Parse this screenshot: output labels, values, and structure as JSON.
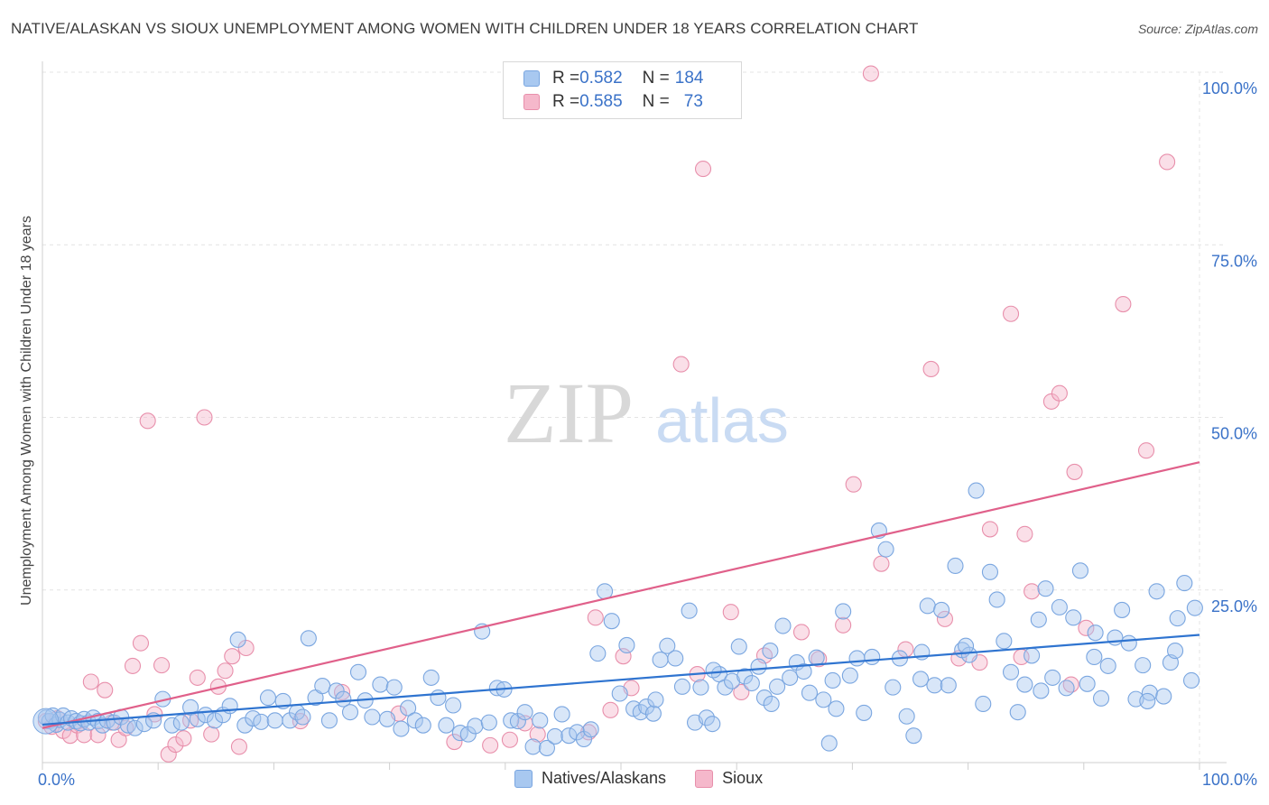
{
  "title": "NATIVE/ALASKAN VS SIOUX UNEMPLOYMENT AMONG WOMEN WITH CHILDREN UNDER 18 YEARS CORRELATION CHART",
  "source": "Source: ZipAtlas.com",
  "watermark": {
    "zip": "ZIP",
    "atlas": "atlas"
  },
  "legend_top": {
    "rows": [
      {
        "r_label": "R = ",
        "r_value": "0.582",
        "n_label": "N = ",
        "n_value": "184",
        "color": "#a8c8f0"
      },
      {
        "r_label": "R = ",
        "r_value": "0.585",
        "n_label": "N = ",
        "n_value": "73",
        "color": "#f5b8cb"
      }
    ]
  },
  "legend_bottom": [
    {
      "label": "Natives/Alaskans",
      "color": "#a8c8f0"
    },
    {
      "label": "Sioux",
      "color": "#f5b8cb"
    }
  ],
  "colors": {
    "blue_fill": "#a8c8f0",
    "blue_stroke": "#7aa6e0",
    "blue_line": "#2f74d0",
    "pink_fill": "#f5b8cb",
    "pink_stroke": "#e88fab",
    "pink_line": "#e0608a",
    "grid": "#e4e4e4",
    "tick_text": "#3a72c8"
  },
  "chart_data": {
    "type": "scatter",
    "title": "NATIVE/ALASKAN VS SIOUX UNEMPLOYMENT AMONG WOMEN WITH CHILDREN UNDER 18 YEARS CORRELATION CHART",
    "xlabel": "",
    "ylabel": "Unemployment Among Women with Children Under 18 years",
    "xlim": [
      0,
      100
    ],
    "ylim": [
      0,
      100
    ],
    "x_ticks": [
      "0.0%",
      "100.0%"
    ],
    "y_ticks": [
      {
        "value": 25,
        "label": "25.0%"
      },
      {
        "value": 50,
        "label": "50.0%"
      },
      {
        "value": 75,
        "label": "75.0%"
      },
      {
        "value": 100,
        "label": "100.0%"
      }
    ],
    "grid": true,
    "series": [
      {
        "name": "Natives/Alaskans",
        "R": 0.582,
        "N": 184,
        "trend": {
          "x": [
            0,
            100
          ],
          "y": [
            5.5,
            18.5
          ]
        },
        "points": [
          [
            0.3,
            6.5
          ],
          [
            0.6,
            6
          ],
          [
            0.9,
            6.8
          ],
          [
            1.2,
            5.5
          ],
          [
            1.5,
            6.2
          ],
          [
            1.8,
            6.8
          ],
          [
            2.2,
            5.8
          ],
          [
            2.5,
            6.4
          ],
          [
            2.9,
            6.0
          ],
          [
            3.3,
            5.7
          ],
          [
            3.6,
            6.3
          ],
          [
            4.0,
            5.8
          ],
          [
            4.4,
            6.5
          ],
          [
            4.8,
            6.0
          ],
          [
            5.2,
            5.4
          ],
          [
            5.6,
            6.1
          ],
          [
            6.2,
            5.8
          ],
          [
            6.8,
            6.6
          ],
          [
            7.4,
            5.4
          ],
          [
            8.0,
            5.0
          ],
          [
            8.8,
            5.6
          ],
          [
            9.6,
            6.1
          ],
          [
            10.4,
            9.2
          ],
          [
            11.2,
            5.4
          ],
          [
            12.0,
            5.8
          ],
          [
            12.8,
            8.0
          ],
          [
            13.4,
            6.3
          ],
          [
            14.1,
            6.9
          ],
          [
            14.9,
            6.1
          ],
          [
            15.6,
            6.9
          ],
          [
            16.2,
            8.2
          ],
          [
            16.9,
            17.8
          ],
          [
            17.5,
            5.4
          ],
          [
            18.2,
            6.4
          ],
          [
            18.9,
            5.9
          ],
          [
            19.5,
            9.4
          ],
          [
            20.1,
            6.1
          ],
          [
            20.8,
            8.9
          ],
          [
            21.4,
            6.1
          ],
          [
            22.0,
            7.3
          ],
          [
            22.5,
            6.6
          ],
          [
            23.0,
            18.0
          ],
          [
            23.6,
            9.4
          ],
          [
            24.2,
            11.1
          ],
          [
            24.8,
            6.1
          ],
          [
            25.4,
            10.4
          ],
          [
            26.0,
            9.2
          ],
          [
            26.6,
            7.3
          ],
          [
            27.3,
            13.1
          ],
          [
            27.9,
            9.0
          ],
          [
            28.5,
            6.6
          ],
          [
            29.2,
            11.3
          ],
          [
            29.8,
            6.3
          ],
          [
            30.4,
            10.9
          ],
          [
            31.0,
            4.9
          ],
          [
            31.6,
            7.9
          ],
          [
            32.2,
            6.1
          ],
          [
            32.9,
            5.4
          ],
          [
            33.6,
            12.3
          ],
          [
            34.2,
            9.4
          ],
          [
            34.9,
            5.4
          ],
          [
            35.5,
            8.3
          ],
          [
            36.1,
            4.3
          ],
          [
            36.8,
            4.1
          ],
          [
            37.4,
            5.3
          ],
          [
            38.0,
            19.0
          ],
          [
            38.6,
            5.8
          ],
          [
            39.3,
            10.8
          ],
          [
            39.9,
            10.6
          ],
          [
            40.5,
            6.1
          ],
          [
            41.1,
            6.0
          ],
          [
            41.7,
            7.3
          ],
          [
            42.4,
            2.3
          ],
          [
            43.0,
            6.1
          ],
          [
            43.6,
            2.1
          ],
          [
            44.3,
            3.8
          ],
          [
            44.9,
            7.0
          ],
          [
            45.5,
            3.9
          ],
          [
            46.2,
            4.4
          ],
          [
            46.8,
            3.4
          ],
          [
            47.4,
            4.8
          ],
          [
            48.0,
            15.8
          ],
          [
            48.6,
            24.8
          ],
          [
            49.2,
            20.5
          ],
          [
            49.9,
            10.0
          ],
          [
            50.5,
            17.0
          ],
          [
            51.1,
            7.8
          ],
          [
            51.7,
            7.3
          ],
          [
            52.2,
            8.1
          ],
          [
            52.8,
            7.1
          ],
          [
            53.4,
            14.9
          ],
          [
            54.0,
            16.9
          ],
          [
            54.7,
            15.1
          ],
          [
            55.3,
            11.0
          ],
          [
            55.9,
            22.0
          ],
          [
            56.4,
            5.8
          ],
          [
            56.9,
            10.9
          ],
          [
            57.4,
            6.5
          ],
          [
            57.9,
            5.6
          ],
          [
            58.5,
            12.8
          ],
          [
            59.0,
            10.9
          ],
          [
            59.6,
            11.8
          ],
          [
            60.2,
            16.8
          ],
          [
            60.7,
            12.5
          ],
          [
            61.3,
            11.5
          ],
          [
            61.9,
            13.9
          ],
          [
            62.4,
            9.4
          ],
          [
            62.9,
            16.2
          ],
          [
            63.5,
            11.0
          ],
          [
            64.0,
            19.8
          ],
          [
            64.6,
            12.3
          ],
          [
            65.2,
            14.5
          ],
          [
            65.8,
            13.2
          ],
          [
            66.3,
            10.1
          ],
          [
            66.9,
            15.2
          ],
          [
            67.5,
            9.1
          ],
          [
            68.0,
            2.8
          ],
          [
            68.6,
            7.8
          ],
          [
            69.2,
            21.9
          ],
          [
            69.8,
            12.6
          ],
          [
            70.4,
            15.1
          ],
          [
            71.0,
            7.2
          ],
          [
            71.7,
            15.3
          ],
          [
            72.3,
            33.6
          ],
          [
            72.9,
            30.9
          ],
          [
            73.5,
            10.9
          ],
          [
            74.1,
            15.1
          ],
          [
            74.7,
            6.7
          ],
          [
            75.3,
            3.9
          ],
          [
            75.9,
            12.1
          ],
          [
            76.5,
            22.7
          ],
          [
            77.1,
            11.2
          ],
          [
            77.7,
            22.1
          ],
          [
            78.3,
            11.2
          ],
          [
            78.9,
            28.5
          ],
          [
            79.5,
            16.3
          ],
          [
            80.1,
            15.6
          ],
          [
            80.7,
            39.4
          ],
          [
            81.3,
            8.5
          ],
          [
            81.9,
            27.6
          ],
          [
            82.5,
            23.6
          ],
          [
            83.1,
            17.6
          ],
          [
            83.7,
            13.1
          ],
          [
            84.3,
            7.3
          ],
          [
            84.9,
            11.3
          ],
          [
            85.5,
            15.5
          ],
          [
            86.1,
            20.7
          ],
          [
            86.7,
            25.2
          ],
          [
            87.3,
            12.3
          ],
          [
            87.9,
            22.5
          ],
          [
            88.5,
            10.8
          ],
          [
            89.1,
            21.0
          ],
          [
            89.7,
            27.8
          ],
          [
            90.3,
            11.4
          ],
          [
            90.9,
            15.3
          ],
          [
            91.5,
            9.3
          ],
          [
            92.1,
            14.0
          ],
          [
            92.7,
            18.1
          ],
          [
            93.3,
            22.1
          ],
          [
            93.9,
            17.3
          ],
          [
            94.5,
            9.2
          ],
          [
            95.1,
            14.1
          ],
          [
            95.7,
            10.1
          ],
          [
            96.3,
            24.8
          ],
          [
            96.9,
            9.6
          ],
          [
            97.5,
            14.5
          ],
          [
            98.1,
            20.9
          ],
          [
            98.7,
            26.0
          ],
          [
            99.3,
            11.9
          ],
          [
            99.6,
            22.4
          ],
          [
            79.8,
            16.9
          ],
          [
            86.3,
            10.4
          ],
          [
            91.0,
            18.8
          ],
          [
            95.5,
            8.9
          ],
          [
            97.9,
            16.2
          ],
          [
            76.0,
            16.0
          ],
          [
            68.3,
            11.9
          ],
          [
            58.0,
            13.4
          ],
          [
            63.0,
            8.5
          ],
          [
            53.0,
            9.1
          ]
        ]
      },
      {
        "name": "Sioux",
        "R": 0.585,
        "N": 73,
        "trend": {
          "x": [
            0,
            100
          ],
          "y": [
            5.0,
            43.5
          ]
        },
        "points": [
          [
            0.3,
            6.0
          ],
          [
            0.8,
            5.2
          ],
          [
            1.3,
            6.4
          ],
          [
            1.8,
            4.6
          ],
          [
            2.4,
            3.9
          ],
          [
            3.0,
            5.4
          ],
          [
            3.6,
            4.0
          ],
          [
            4.2,
            11.7
          ],
          [
            4.8,
            4.0
          ],
          [
            5.4,
            10.5
          ],
          [
            6.0,
            5.8
          ],
          [
            6.6,
            3.3
          ],
          [
            7.2,
            5.0
          ],
          [
            7.8,
            14.0
          ],
          [
            8.5,
            17.3
          ],
          [
            9.1,
            49.5
          ],
          [
            9.7,
            7.0
          ],
          [
            10.3,
            14.1
          ],
          [
            10.9,
            1.2
          ],
          [
            11.5,
            2.6
          ],
          [
            12.2,
            3.5
          ],
          [
            12.8,
            6.1
          ],
          [
            13.4,
            12.3
          ],
          [
            14.0,
            50.0
          ],
          [
            14.6,
            4.1
          ],
          [
            15.2,
            11.0
          ],
          [
            15.8,
            13.3
          ],
          [
            16.4,
            15.4
          ],
          [
            17.0,
            2.3
          ],
          [
            17.6,
            16.6
          ],
          [
            22.3,
            6.0
          ],
          [
            25.9,
            10.2
          ],
          [
            30.8,
            7.1
          ],
          [
            35.6,
            3.0
          ],
          [
            38.7,
            2.5
          ],
          [
            40.4,
            3.3
          ],
          [
            41.7,
            5.7
          ],
          [
            42.8,
            4.1
          ],
          [
            47.2,
            4.4
          ],
          [
            47.8,
            21.0
          ],
          [
            49.1,
            7.6
          ],
          [
            50.2,
            15.4
          ],
          [
            50.9,
            10.8
          ],
          [
            55.2,
            57.7
          ],
          [
            56.6,
            12.8
          ],
          [
            57.1,
            86.0
          ],
          [
            59.5,
            21.8
          ],
          [
            60.4,
            10.2
          ],
          [
            62.4,
            15.5
          ],
          [
            65.6,
            18.9
          ],
          [
            67.1,
            15.0
          ],
          [
            69.2,
            19.9
          ],
          [
            70.1,
            40.3
          ],
          [
            71.6,
            99.8
          ],
          [
            72.5,
            28.8
          ],
          [
            74.6,
            16.4
          ],
          [
            76.8,
            57.0
          ],
          [
            78.0,
            20.8
          ],
          [
            79.2,
            15.1
          ],
          [
            81.9,
            33.8
          ],
          [
            83.7,
            65.0
          ],
          [
            84.9,
            33.1
          ],
          [
            85.5,
            24.8
          ],
          [
            87.2,
            52.3
          ],
          [
            87.9,
            53.5
          ],
          [
            89.2,
            42.1
          ],
          [
            90.2,
            19.5
          ],
          [
            93.4,
            66.4
          ],
          [
            95.4,
            45.2
          ],
          [
            97.2,
            87.0
          ],
          [
            84.6,
            15.3
          ],
          [
            88.9,
            11.3
          ],
          [
            81.0,
            14.5
          ]
        ]
      }
    ]
  }
}
